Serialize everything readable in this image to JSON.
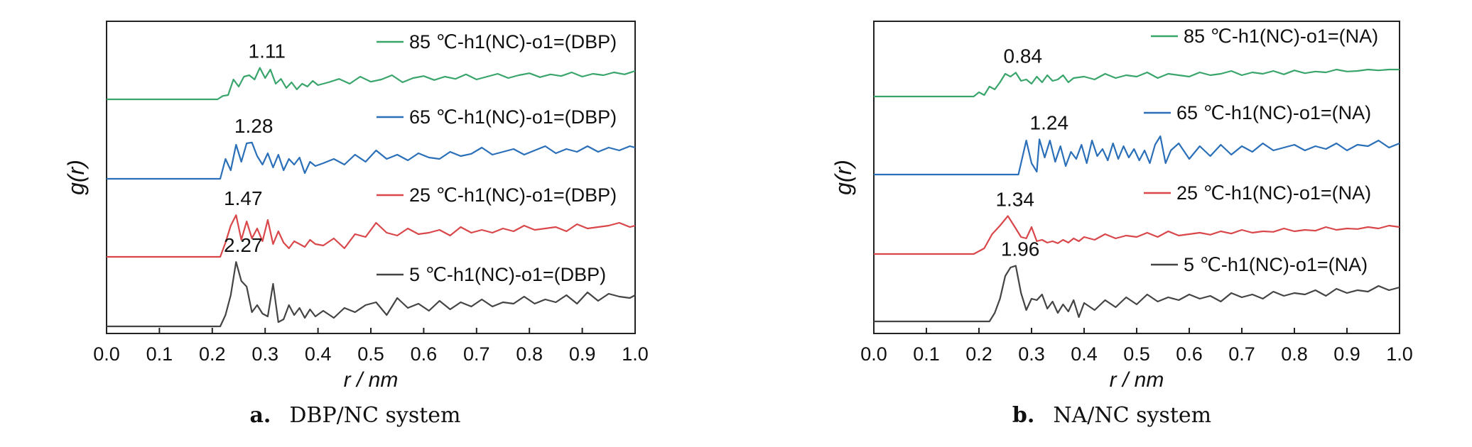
{
  "chart_data": [
    {
      "type": "line",
      "caption_letter": "a.",
      "caption_text": "DBP/NC system",
      "xlabel": "r / nm",
      "ylabel": "g(r)",
      "xlim": [
        0.0,
        1.0
      ],
      "xticks": [
        "0.0",
        "0.1",
        "0.2",
        "0.3",
        "0.4",
        "0.5",
        "0.6",
        "0.7",
        "0.8",
        "0.9",
        "1.0"
      ],
      "grid": false,
      "legend_placement": "inline, right of each curve",
      "series": [
        {
          "name": "85 ℃-h1(NC)-o1=(DBP)",
          "color": "#3aa56b",
          "peak_label": "1.11",
          "peak_r": 0.29,
          "peak_g": 1.11,
          "offset": 3,
          "onset": 0.21,
          "x": [
            0.0,
            0.21,
            0.22,
            0.23,
            0.24,
            0.25,
            0.26,
            0.27,
            0.28,
            0.29,
            0.3,
            0.31,
            0.32,
            0.33,
            0.34,
            0.35,
            0.36,
            0.37,
            0.38,
            0.39,
            0.4,
            0.42,
            0.44,
            0.46,
            0.48,
            0.5,
            0.52,
            0.54,
            0.56,
            0.58,
            0.6,
            0.62,
            0.64,
            0.66,
            0.68,
            0.7,
            0.72,
            0.74,
            0.76,
            0.78,
            0.8,
            0.82,
            0.84,
            0.86,
            0.88,
            0.9,
            0.92,
            0.94,
            0.96,
            0.98,
            1.0
          ],
          "y": [
            0,
            0,
            0.12,
            0.15,
            0.7,
            0.45,
            0.8,
            0.85,
            0.7,
            1.11,
            0.75,
            1.05,
            0.55,
            0.72,
            0.4,
            0.6,
            0.35,
            0.55,
            0.45,
            0.65,
            0.5,
            0.6,
            0.72,
            0.55,
            0.8,
            0.62,
            0.7,
            0.85,
            0.6,
            0.75,
            0.82,
            0.68,
            0.8,
            0.72,
            0.88,
            0.7,
            0.8,
            0.9,
            0.75,
            0.85,
            0.92,
            0.78,
            0.88,
            0.82,
            0.95,
            0.8,
            0.9,
            0.85,
            0.95,
            0.88,
            1.0
          ]
        },
        {
          "name": "65 ℃-h1(NC)-o1=(DBP)",
          "color": "#2a6fb8",
          "peak_label": "1.28",
          "peak_r": 0.265,
          "peak_g": 1.28,
          "offset": 2,
          "onset": 0.21,
          "x": [
            0.0,
            0.215,
            0.225,
            0.235,
            0.245,
            0.255,
            0.265,
            0.275,
            0.285,
            0.295,
            0.305,
            0.315,
            0.325,
            0.335,
            0.345,
            0.355,
            0.365,
            0.375,
            0.385,
            0.395,
            0.41,
            0.43,
            0.45,
            0.47,
            0.49,
            0.51,
            0.53,
            0.55,
            0.57,
            0.59,
            0.61,
            0.63,
            0.65,
            0.67,
            0.69,
            0.71,
            0.73,
            0.75,
            0.77,
            0.79,
            0.81,
            0.83,
            0.85,
            0.87,
            0.89,
            0.91,
            0.93,
            0.95,
            0.97,
            0.99,
            1.0
          ],
          "y": [
            0,
            0,
            0.7,
            0.3,
            1.2,
            0.6,
            1.25,
            1.28,
            0.8,
            0.5,
            0.9,
            0.4,
            0.85,
            0.3,
            0.7,
            0.5,
            0.75,
            0.2,
            0.6,
            0.45,
            0.55,
            0.7,
            0.5,
            0.85,
            0.6,
            1.0,
            0.7,
            0.85,
            0.65,
            0.9,
            0.75,
            0.7,
            0.95,
            0.8,
            0.88,
            1.1,
            0.85,
            0.95,
            1.05,
            0.85,
            1.0,
            1.15,
            0.9,
            1.05,
            0.95,
            1.15,
            0.95,
            1.1,
            1.0,
            1.15,
            1.1
          ]
        },
        {
          "name": "25 ℃-h1(NC)-o1=(DBP)",
          "color": "#d9474a",
          "peak_label": "1.47",
          "peak_r": 0.245,
          "peak_g": 1.47,
          "offset": 1,
          "onset": 0.21,
          "x": [
            0.0,
            0.215,
            0.225,
            0.235,
            0.245,
            0.255,
            0.265,
            0.275,
            0.285,
            0.295,
            0.305,
            0.315,
            0.325,
            0.335,
            0.345,
            0.355,
            0.365,
            0.375,
            0.385,
            0.395,
            0.41,
            0.43,
            0.45,
            0.47,
            0.49,
            0.51,
            0.53,
            0.55,
            0.57,
            0.59,
            0.61,
            0.63,
            0.65,
            0.67,
            0.69,
            0.71,
            0.73,
            0.75,
            0.77,
            0.79,
            0.81,
            0.83,
            0.85,
            0.87,
            0.89,
            0.91,
            0.93,
            0.95,
            0.97,
            0.99,
            1.0
          ],
          "y": [
            0,
            0,
            0.5,
            1.1,
            1.47,
            0.6,
            1.25,
            0.65,
            1.0,
            0.55,
            1.3,
            0.45,
            0.9,
            0.5,
            0.3,
            0.55,
            0.45,
            0.35,
            0.6,
            0.45,
            0.4,
            0.65,
            0.3,
            0.8,
            0.7,
            1.2,
            0.85,
            0.75,
            1.0,
            0.8,
            0.85,
            0.95,
            0.75,
            1.05,
            0.85,
            0.95,
            0.85,
            1.0,
            0.9,
            1.1,
            0.95,
            1.0,
            1.05,
            0.9,
            1.15,
            1.0,
            1.05,
            1.1,
            1.2,
            1.05,
            1.1
          ]
        },
        {
          "name": "5 ℃-h1(NC)-o1=(DBP)",
          "color": "#444444",
          "peak_label": "2.27",
          "peak_r": 0.245,
          "peak_g": 2.27,
          "offset": 0,
          "onset": 0.215,
          "x": [
            0.0,
            0.215,
            0.225,
            0.235,
            0.245,
            0.255,
            0.265,
            0.275,
            0.285,
            0.295,
            0.305,
            0.315,
            0.325,
            0.335,
            0.345,
            0.355,
            0.365,
            0.375,
            0.385,
            0.395,
            0.41,
            0.43,
            0.45,
            0.47,
            0.49,
            0.51,
            0.53,
            0.55,
            0.57,
            0.59,
            0.61,
            0.63,
            0.65,
            0.67,
            0.69,
            0.71,
            0.73,
            0.75,
            0.77,
            0.79,
            0.81,
            0.83,
            0.85,
            0.87,
            0.89,
            0.91,
            0.93,
            0.95,
            0.97,
            0.99,
            1.0
          ],
          "y": [
            0,
            0,
            0.4,
            1.1,
            2.27,
            1.6,
            1.4,
            0.5,
            0.75,
            0.45,
            0.35,
            1.5,
            0.15,
            0.25,
            0.75,
            0.4,
            0.65,
            0.3,
            0.6,
            0.35,
            0.55,
            0.3,
            0.65,
            0.5,
            0.75,
            0.85,
            0.4,
            1.0,
            0.65,
            0.8,
            0.55,
            0.9,
            0.6,
            0.85,
            0.7,
            0.95,
            0.7,
            0.85,
            0.8,
            1.05,
            0.8,
            0.95,
            0.85,
            1.1,
            0.8,
            1.2,
            0.9,
            1.15,
            1.05,
            1.0,
            1.1
          ]
        }
      ]
    },
    {
      "type": "line",
      "caption_letter": "b.",
      "caption_text": "NA/NC system",
      "xlabel": "r / nm",
      "ylabel": "g(r)",
      "xlim": [
        0.0,
        1.0
      ],
      "xticks": [
        "0.0",
        "0.1",
        "0.2",
        "0.3",
        "0.4",
        "0.5",
        "0.6",
        "0.7",
        "0.8",
        "0.9",
        "1.0"
      ],
      "grid": false,
      "legend_placement": "inline, right of each curve",
      "series": [
        {
          "name": "85 ℃-h1(NC)-o1=(NA)",
          "color": "#3aa56b",
          "peak_label": "0.84",
          "peak_r": 0.27,
          "peak_g": 0.84,
          "offset": 3,
          "onset": 0.19,
          "x": [
            0.0,
            0.19,
            0.2,
            0.21,
            0.22,
            0.23,
            0.24,
            0.25,
            0.26,
            0.27,
            0.28,
            0.29,
            0.3,
            0.31,
            0.32,
            0.33,
            0.34,
            0.35,
            0.36,
            0.37,
            0.38,
            0.4,
            0.42,
            0.44,
            0.46,
            0.48,
            0.5,
            0.52,
            0.54,
            0.56,
            0.58,
            0.6,
            0.62,
            0.64,
            0.66,
            0.68,
            0.7,
            0.72,
            0.74,
            0.76,
            0.78,
            0.8,
            0.82,
            0.84,
            0.86,
            0.88,
            0.9,
            0.92,
            0.94,
            0.96,
            0.98,
            1.0
          ],
          "y": [
            0,
            0,
            0.15,
            0.05,
            0.35,
            0.25,
            0.5,
            0.8,
            0.7,
            0.84,
            0.55,
            0.6,
            0.45,
            0.7,
            0.5,
            0.75,
            0.55,
            0.6,
            0.75,
            0.5,
            0.65,
            0.7,
            0.6,
            0.8,
            0.65,
            0.75,
            0.7,
            0.85,
            0.65,
            0.8,
            0.75,
            0.7,
            0.85,
            0.75,
            0.8,
            0.9,
            0.75,
            0.85,
            0.8,
            0.9,
            0.78,
            0.92,
            0.82,
            0.88,
            0.85,
            0.95,
            0.88,
            0.9,
            0.95,
            0.92,
            0.95,
            0.95
          ]
        },
        {
          "name": "65 ℃-h1(NC)-o1=(NA)",
          "color": "#2a6fb8",
          "peak_label": "1.24",
          "peak_r": 0.32,
          "peak_g": 1.24,
          "offset": 2,
          "onset": 0.275,
          "x": [
            0.0,
            0.275,
            0.29,
            0.3,
            0.31,
            0.315,
            0.325,
            0.335,
            0.345,
            0.355,
            0.365,
            0.375,
            0.385,
            0.395,
            0.405,
            0.415,
            0.425,
            0.435,
            0.445,
            0.455,
            0.465,
            0.475,
            0.485,
            0.495,
            0.505,
            0.515,
            0.525,
            0.535,
            0.545,
            0.555,
            0.565,
            0.58,
            0.6,
            0.62,
            0.64,
            0.66,
            0.68,
            0.7,
            0.72,
            0.74,
            0.76,
            0.78,
            0.8,
            0.82,
            0.84,
            0.86,
            0.88,
            0.9,
            0.92,
            0.94,
            0.96,
            0.98,
            1.0
          ],
          "y": [
            0,
            0,
            1.2,
            0.4,
            0.1,
            1.24,
            0.6,
            1.2,
            0.45,
            1.0,
            0.3,
            0.8,
            0.55,
            1.05,
            0.4,
            1.2,
            0.65,
            0.9,
            0.5,
            1.1,
            0.55,
            1.0,
            0.6,
            0.9,
            0.5,
            0.85,
            0.4,
            1.05,
            1.35,
            0.4,
            0.85,
            1.1,
            0.55,
            1.0,
            0.65,
            1.05,
            0.7,
            1.0,
            0.8,
            1.1,
            0.85,
            0.95,
            1.05,
            0.85,
            1.0,
            0.9,
            1.1,
            0.85,
            1.05,
            1.0,
            1.2,
            0.95,
            1.1
          ]
        },
        {
          "name": "25 ℃-h1(NC)-o1=(NA)",
          "color": "#d9474a",
          "peak_label": "1.34",
          "peak_r": 0.255,
          "peak_g": 1.34,
          "offset": 1,
          "onset": 0.19,
          "x": [
            0.0,
            0.19,
            0.21,
            0.225,
            0.24,
            0.255,
            0.27,
            0.28,
            0.29,
            0.3,
            0.31,
            0.32,
            0.33,
            0.34,
            0.35,
            0.36,
            0.37,
            0.38,
            0.39,
            0.4,
            0.42,
            0.44,
            0.46,
            0.48,
            0.5,
            0.52,
            0.54,
            0.56,
            0.58,
            0.6,
            0.62,
            0.64,
            0.66,
            0.68,
            0.7,
            0.72,
            0.74,
            0.76,
            0.78,
            0.8,
            0.82,
            0.84,
            0.86,
            0.88,
            0.9,
            0.92,
            0.94,
            0.96,
            0.98,
            1.0
          ],
          "y": [
            0,
            0,
            0.2,
            0.7,
            1.0,
            1.34,
            0.9,
            0.6,
            0.55,
            0.95,
            0.45,
            0.5,
            0.4,
            0.45,
            0.38,
            0.5,
            0.4,
            0.55,
            0.45,
            0.6,
            0.5,
            0.7,
            0.55,
            0.65,
            0.6,
            0.75,
            0.6,
            0.8,
            0.65,
            0.7,
            0.75,
            0.68,
            0.8,
            0.72,
            0.85,
            0.75,
            0.8,
            0.78,
            0.9,
            0.8,
            0.85,
            0.82,
            0.95,
            0.85,
            0.9,
            0.88,
            0.95,
            0.9,
            1.0,
            0.95
          ]
        },
        {
          "name": "5 ℃-h1(NC)-o1=(NA)",
          "color": "#444444",
          "peak_label": "1.96",
          "peak_r": 0.265,
          "peak_g": 1.96,
          "offset": 0,
          "onset": 0.22,
          "x": [
            0.0,
            0.22,
            0.23,
            0.24,
            0.25,
            0.26,
            0.27,
            0.28,
            0.29,
            0.3,
            0.31,
            0.32,
            0.33,
            0.34,
            0.35,
            0.36,
            0.37,
            0.38,
            0.39,
            0.4,
            0.42,
            0.44,
            0.46,
            0.48,
            0.5,
            0.52,
            0.54,
            0.56,
            0.58,
            0.6,
            0.62,
            0.64,
            0.66,
            0.68,
            0.7,
            0.72,
            0.74,
            0.76,
            0.78,
            0.8,
            0.82,
            0.84,
            0.86,
            0.88,
            0.9,
            0.92,
            0.94,
            0.96,
            0.98,
            1.0
          ],
          "y": [
            0,
            0,
            0.3,
            0.8,
            1.6,
            1.9,
            1.96,
            1.0,
            0.4,
            0.8,
            0.75,
            0.95,
            0.45,
            0.7,
            0.3,
            0.6,
            0.35,
            0.75,
            0.15,
            0.65,
            0.4,
            0.75,
            0.5,
            0.85,
            0.6,
            0.95,
            0.7,
            0.85,
            0.75,
            0.95,
            0.8,
            0.9,
            0.7,
            1.0,
            0.85,
            0.95,
            0.8,
            1.05,
            0.9,
            1.0,
            0.95,
            1.1,
            0.9,
            1.15,
            1.0,
            1.1,
            1.05,
            1.25,
            1.1,
            1.2
          ]
        }
      ]
    }
  ]
}
